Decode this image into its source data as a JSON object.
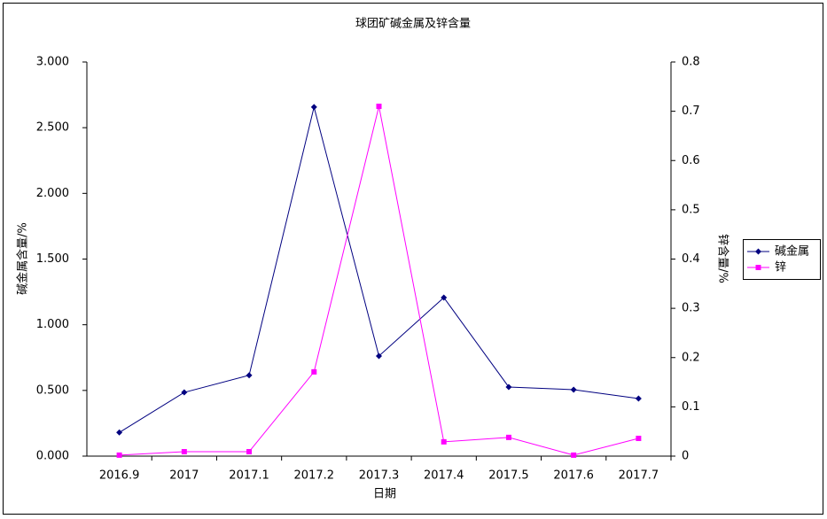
{
  "chart_data": {
    "type": "line",
    "title": "球团矿碱金属及锌含量",
    "x_label": "日期",
    "y_label": "碱金属含量/%",
    "y2_label": "锌含量/%",
    "categories": [
      "2016.9",
      "2017",
      "2017.1",
      "2017.2",
      "2017.3",
      "2017.4",
      "2017.5",
      "2017.6",
      "2017.7"
    ],
    "ylim": [
      0,
      3
    ],
    "yticks": [
      {
        "value": 0,
        "label": "0.000"
      },
      {
        "value": 0.5,
        "label": "0.500"
      },
      {
        "value": 1,
        "label": "1.000"
      },
      {
        "value": 1.5,
        "label": "1.500"
      },
      {
        "value": 2,
        "label": "2.000"
      },
      {
        "value": 2.5,
        "label": "2.500"
      },
      {
        "value": 3,
        "label": "3.000"
      }
    ],
    "y2lim": [
      0,
      0.8
    ],
    "y2ticks": [
      0,
      0.1,
      0.2,
      0.3,
      0.4,
      0.5,
      0.6,
      0.7,
      0.8
    ],
    "legend": "right",
    "series": [
      {
        "name": "碱金属",
        "color": "#000080",
        "marker": "diamond",
        "values": [
          0.18,
          0.485,
          0.615,
          2.657,
          0.762,
          1.207,
          0.526,
          0.506,
          0.438
        ]
      },
      {
        "name": "锌",
        "color": "#ff00ff",
        "marker": "square",
        "axis": "y2",
        "values": [
          0.002,
          0.009,
          0.009,
          0.171,
          0.71,
          0.029,
          0.038,
          0.002,
          0.036
        ]
      }
    ]
  }
}
